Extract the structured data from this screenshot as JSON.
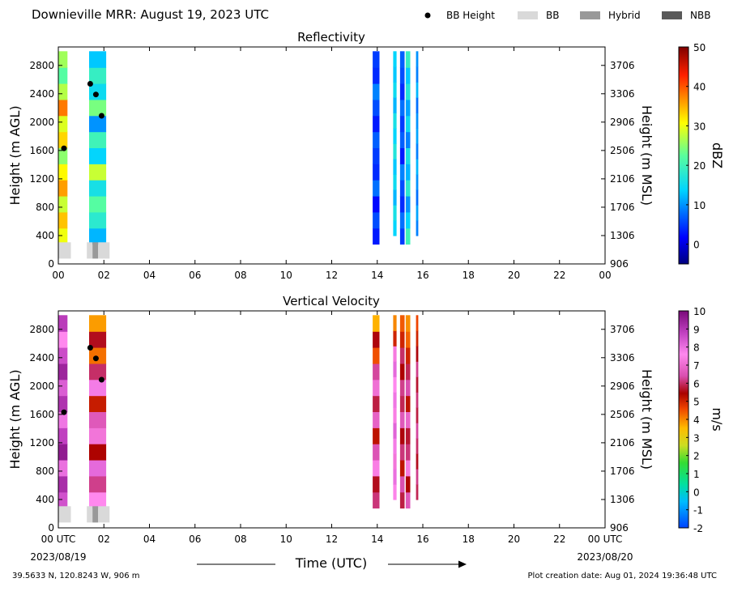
{
  "header": {
    "title": "Downieville MRR:  August 19, 2023 UTC",
    "legend": [
      {
        "label": "BB Height",
        "kind": "dot",
        "color": "#000000"
      },
      {
        "label": "BB",
        "kind": "swatch",
        "color": "#d9d9d9"
      },
      {
        "label": "Hybrid",
        "kind": "swatch",
        "color": "#999999"
      },
      {
        "label": "NBB",
        "kind": "swatch",
        "color": "#595959"
      }
    ]
  },
  "footer": {
    "location": "39.5633 N, 120.8243 W, 906 m",
    "creation": "Plot creation date: Aug 01, 2024 19:36:48 UTC",
    "xlabel": "Time (UTC)",
    "start_date": "2023/08/19",
    "end_date": "2023/08/20"
  },
  "chart_data": [
    {
      "type": "heatmap",
      "title": "Reflectivity",
      "ylabel": "Height (m AGL)",
      "ylabel_right": "Height (m MSL)",
      "colorbar_label": "dBZ",
      "colorbar_ticks": [
        "50",
        "40",
        "30",
        "20",
        "10",
        "0"
      ],
      "colorbar_range": [
        -5,
        50
      ],
      "colormap": "jet",
      "x_ticks": [
        "00",
        "02",
        "04",
        "06",
        "08",
        "10",
        "12",
        "14",
        "16",
        "18",
        "20",
        "22",
        "00"
      ],
      "y_ticks": [
        "0",
        "400",
        "800",
        "1200",
        "1600",
        "2000",
        "2400",
        "2800"
      ],
      "y_ticks_right": [
        "906",
        "1306",
        "1706",
        "2106",
        "2506",
        "2906",
        "3306",
        "3706"
      ],
      "xlim_hours": [
        0,
        24
      ],
      "ylim_m": [
        0,
        3060
      ],
      "precip_columns": [
        {
          "start_hour": 0.0,
          "end_hour": 0.4,
          "min_m": 280,
          "max_m": 3000,
          "values": [
            30,
            34,
            28,
            36,
            31,
            25,
            33,
            29,
            38,
            27,
            22,
            26
          ]
        },
        {
          "start_hour": 1.35,
          "end_hour": 2.1,
          "min_m": 280,
          "max_m": 3000,
          "values": [
            12,
            18,
            22,
            16,
            28,
            14,
            20,
            10,
            24,
            15,
            19,
            13
          ]
        },
        {
          "start_hour": 13.8,
          "end_hour": 14.1,
          "min_m": 280,
          "max_m": 3000,
          "values": [
            3,
            6,
            2,
            8,
            4,
            5,
            7,
            3,
            6,
            9,
            4,
            5
          ]
        },
        {
          "start_hour": 14.7,
          "end_hour": 14.85,
          "min_m": 400,
          "max_m": 3000,
          "values": [
            14,
            16,
            12,
            15,
            13,
            17,
            14,
            16,
            12,
            15,
            13,
            14
          ]
        },
        {
          "start_hour": 15.0,
          "end_hour": 15.2,
          "min_m": 280,
          "max_m": 3000,
          "values": [
            5,
            8,
            4,
            6,
            9,
            3,
            7,
            5,
            8,
            4,
            6,
            7
          ]
        },
        {
          "start_hour": 15.25,
          "end_hour": 15.45,
          "min_m": 280,
          "max_m": 3000,
          "values": [
            20,
            14,
            10,
            18,
            12,
            16,
            9,
            15,
            11,
            17,
            13,
            19
          ]
        },
        {
          "start_hour": 15.7,
          "end_hour": 15.8,
          "min_m": 400,
          "max_m": 3000,
          "values": [
            9,
            11,
            8,
            10,
            12,
            9,
            11,
            10,
            8,
            12,
            9,
            10
          ]
        }
      ],
      "bb_height_points": [
        {
          "hour": 0.25,
          "height_m": 1630
        },
        {
          "hour": 1.4,
          "height_m": 2540
        },
        {
          "hour": 1.65,
          "height_m": 2390
        },
        {
          "hour": 1.9,
          "height_m": 2090
        }
      ],
      "bb_bars": [
        {
          "start_hour": 0.0,
          "end_hour": 0.55,
          "kind": "BB"
        },
        {
          "start_hour": 1.25,
          "end_hour": 1.5,
          "kind": "BB"
        },
        {
          "start_hour": 1.5,
          "end_hour": 1.75,
          "kind": "Hybrid"
        },
        {
          "start_hour": 1.75,
          "end_hour": 2.25,
          "kind": "BB"
        }
      ]
    },
    {
      "type": "heatmap",
      "title": "Vertical Velocity",
      "ylabel": "Height (m AGL)",
      "ylabel_right": "Height (m MSL)",
      "colorbar_label": "m/s",
      "colorbar_ticks": [
        "10",
        "9",
        "8",
        "7",
        "6",
        "5",
        "4",
        "3",
        "2",
        "1",
        "0",
        "-1",
        "-2"
      ],
      "colorbar_range": [
        -2,
        10
      ],
      "colormap": "velocity",
      "x_ticks": [
        "00 UTC",
        "02",
        "04",
        "06",
        "08",
        "10",
        "12",
        "14",
        "16",
        "18",
        "20",
        "22",
        "00 UTC"
      ],
      "y_ticks": [
        "0",
        "400",
        "800",
        "1200",
        "1600",
        "2000",
        "2400",
        "2800"
      ],
      "y_ticks_right": [
        "906",
        "1306",
        "1706",
        "2106",
        "2506",
        "2906",
        "3306",
        "3706"
      ],
      "xlim_hours": [
        0,
        24
      ],
      "ylim_m": [
        0,
        3060
      ],
      "precip_columns": [
        {
          "start_hour": 0.0,
          "end_hour": 0.4,
          "min_m": 280,
          "max_m": 3000,
          "values": [
            8.5,
            9.2,
            8.0,
            9.6,
            8.8,
            7.9,
            9.1,
            8.3,
            9.4,
            8.6,
            7.6,
            8.9
          ]
        },
        {
          "start_hour": 1.35,
          "end_hour": 2.1,
          "min_m": 280,
          "max_m": 3000,
          "values": [
            7.6,
            6.2,
            8.1,
            5.4,
            7.2,
            6.6,
            5.1,
            7.8,
            6.0,
            4.2,
            5.6,
            3.8
          ]
        },
        {
          "start_hour": 13.8,
          "end_hour": 14.1,
          "min_m": 280,
          "max_m": 3000,
          "values": [
            6.1,
            5.6,
            7.4,
            6.5,
            5.2,
            6.8,
            5.8,
            7.1,
            6.3,
            4.5,
            5.5,
            3.6
          ]
        },
        {
          "start_hour": 14.7,
          "end_hour": 14.85,
          "min_m": 400,
          "max_m": 3000,
          "values": [
            7.5,
            8.0,
            7.2,
            7.8,
            8.2,
            7.4,
            7.9,
            7.6,
            8.1,
            7.3,
            5.0,
            4.0
          ]
        },
        {
          "start_hour": 15.0,
          "end_hour": 15.2,
          "min_m": 280,
          "max_m": 3000,
          "values": [
            5.8,
            6.4,
            5.2,
            6.1,
            5.5,
            6.6,
            5.9,
            6.2,
            5.4,
            6.0,
            5.0,
            4.4
          ]
        },
        {
          "start_hour": 15.25,
          "end_hour": 15.45,
          "min_m": 280,
          "max_m": 3000,
          "values": [
            6.6,
            5.4,
            7.3,
            6.1,
            5.7,
            6.9,
            5.2,
            6.4,
            5.9,
            5.0,
            4.3,
            3.9
          ]
        },
        {
          "start_hour": 15.7,
          "end_hour": 15.8,
          "min_m": 400,
          "max_m": 3000,
          "values": [
            5.9,
            6.2,
            5.6,
            6.0,
            6.3,
            5.8,
            6.1,
            5.7,
            6.2,
            5.5,
            5.0,
            4.6
          ]
        }
      ],
      "bb_height_points": [
        {
          "hour": 0.25,
          "height_m": 1630
        },
        {
          "hour": 1.4,
          "height_m": 2540
        },
        {
          "hour": 1.65,
          "height_m": 2390
        },
        {
          "hour": 1.9,
          "height_m": 2090
        }
      ],
      "bb_bars": [
        {
          "start_hour": 0.0,
          "end_hour": 0.55,
          "kind": "BB"
        },
        {
          "start_hour": 1.25,
          "end_hour": 1.5,
          "kind": "BB"
        },
        {
          "start_hour": 1.5,
          "end_hour": 1.75,
          "kind": "Hybrid"
        },
        {
          "start_hour": 1.75,
          "end_hour": 2.25,
          "kind": "BB"
        }
      ]
    }
  ]
}
